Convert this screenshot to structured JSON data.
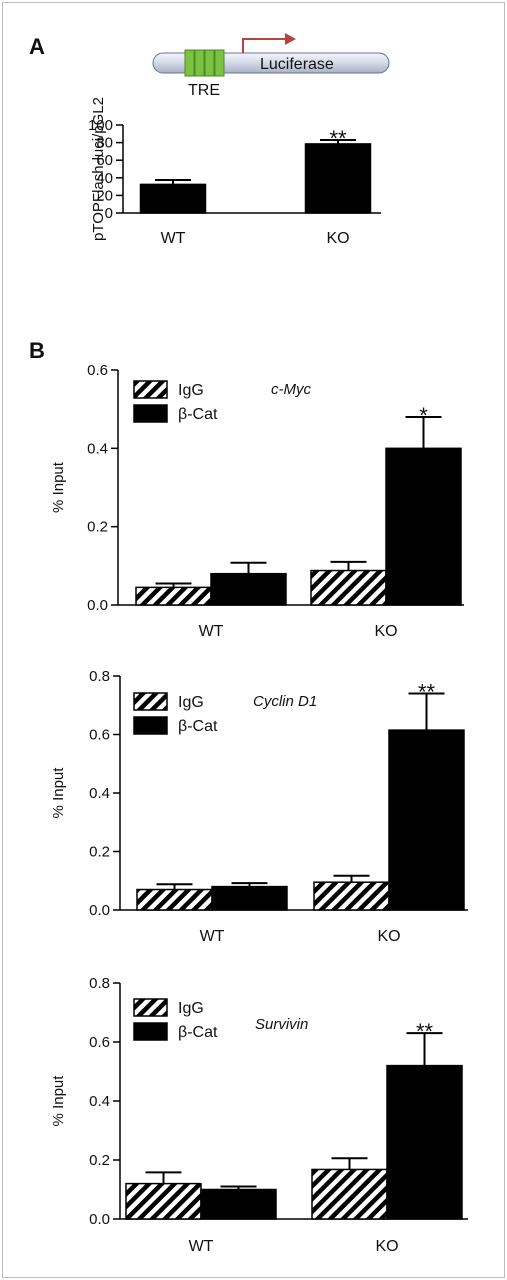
{
  "panels": {
    "a_letter": "A",
    "b_letter": "B"
  },
  "diagram": {
    "element_label": "TRE",
    "gene_label": "Luciferase",
    "arrow_color": "#b5443a",
    "element_color": "#7cc242"
  },
  "colors": {
    "beta_cat": "#000000",
    "igg_hatch": "#000000"
  },
  "chart_data": [
    {
      "type": "bar",
      "categories": [
        "WT",
        "KO"
      ],
      "series": [
        {
          "values": [
            32.5,
            78.5
          ],
          "errors": [
            5,
            4.5
          ]
        }
      ],
      "significance": [
        "",
        "**"
      ],
      "ylabel": "pTOPFlash-luci/pGL2",
      "xlabel": "",
      "ylim": [
        0,
        100
      ],
      "yticks": [
        "0",
        "20",
        "40",
        "60",
        "80",
        "100"
      ],
      "gene": ""
    },
    {
      "type": "bar",
      "categories": [
        "WT",
        "KO"
      ],
      "series": [
        {
          "name": "IgG",
          "values": [
            0.045,
            0.088
          ],
          "errors": [
            0.01,
            0.022
          ],
          "pattern": "hatch"
        },
        {
          "name": "β-Cat",
          "values": [
            0.08,
            0.4
          ],
          "errors": [
            0.028,
            0.08
          ],
          "pattern": "solid"
        }
      ],
      "significance": [
        "",
        "*"
      ],
      "ylabel": "% Input",
      "ylim": [
        0,
        0.6
      ],
      "yticks": [
        "0.0",
        "0.2",
        "0.4",
        "0.6"
      ],
      "gene": "c-Myc",
      "legend": "top-left"
    },
    {
      "type": "bar",
      "categories": [
        "WT",
        "KO"
      ],
      "series": [
        {
          "name": "IgG",
          "values": [
            0.07,
            0.095
          ],
          "errors": [
            0.018,
            0.022
          ],
          "pattern": "hatch"
        },
        {
          "name": "β-Cat",
          "values": [
            0.08,
            0.615
          ],
          "errors": [
            0.012,
            0.125
          ],
          "pattern": "solid"
        }
      ],
      "significance": [
        "",
        "**"
      ],
      "ylabel": "% Input",
      "ylim": [
        0,
        0.8
      ],
      "yticks": [
        "0.0",
        "0.2",
        "0.4",
        "0.6",
        "0.8"
      ],
      "gene": "Cyclin D1",
      "legend": "top-left"
    },
    {
      "type": "bar",
      "categories": [
        "WT",
        "KO"
      ],
      "series": [
        {
          "name": "IgG",
          "values": [
            0.12,
            0.168
          ],
          "errors": [
            0.038,
            0.038
          ],
          "pattern": "hatch"
        },
        {
          "name": "β-Cat",
          "values": [
            0.1,
            0.52
          ],
          "errors": [
            0.01,
            0.11
          ],
          "pattern": "solid"
        }
      ],
      "significance": [
        "",
        "**"
      ],
      "ylabel": "% Input",
      "ylim": [
        0,
        0.8
      ],
      "yticks": [
        "0.0",
        "0.2",
        "0.4",
        "0.6",
        "0.8"
      ],
      "gene": "Survivin",
      "legend": "top-left"
    }
  ]
}
